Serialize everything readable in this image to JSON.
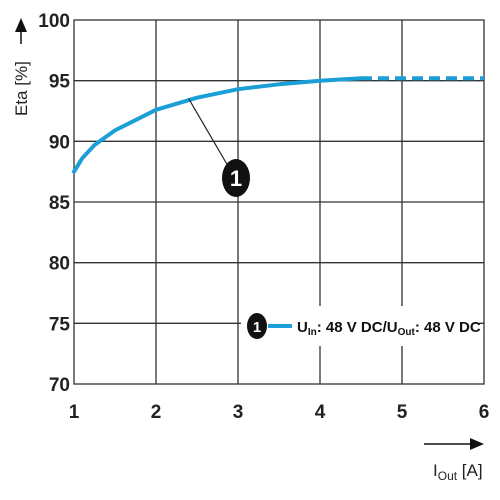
{
  "chart_data": {
    "type": "line",
    "xlabel": {
      "main": "I",
      "sub": "Out",
      "unit": " [A]"
    },
    "ylabel": "Eta [%]",
    "xlim": [
      1,
      6
    ],
    "ylim": [
      70,
      100
    ],
    "x_ticks": [
      "1",
      "2",
      "3",
      "4",
      "5",
      "6"
    ],
    "y_ticks": [
      "100",
      "95",
      "90",
      "85",
      "80",
      "75",
      "70"
    ],
    "grid": true,
    "series": [
      {
        "marker": "1",
        "color": "#1a9fd6",
        "points": [
          [
            1.0,
            87.5
          ],
          [
            1.1,
            88.6
          ],
          [
            1.25,
            89.7
          ],
          [
            1.5,
            90.9
          ],
          [
            2.0,
            92.6
          ],
          [
            2.5,
            93.6
          ],
          [
            3.0,
            94.3
          ],
          [
            3.5,
            94.7
          ],
          [
            4.0,
            95.0
          ],
          [
            4.5,
            95.2
          ]
        ],
        "dashed_points": [
          [
            4.5,
            95.2
          ],
          [
            5.0,
            95.2
          ],
          [
            5.5,
            95.2
          ],
          [
            6.0,
            95.2
          ]
        ]
      }
    ],
    "annotation": {
      "label": "1",
      "target": [
        2.4,
        93.5
      ]
    },
    "legend": {
      "marker": "1",
      "text_parts": [
        {
          "t": "U",
          "sub": false
        },
        {
          "t": "In",
          "sub": true
        },
        {
          "t": ": 48 V DC/U",
          "sub": false
        },
        {
          "t": "Out",
          "sub": true
        },
        {
          "t": ": 48 V DC",
          "sub": false
        }
      ],
      "placement": "lower-right"
    }
  }
}
